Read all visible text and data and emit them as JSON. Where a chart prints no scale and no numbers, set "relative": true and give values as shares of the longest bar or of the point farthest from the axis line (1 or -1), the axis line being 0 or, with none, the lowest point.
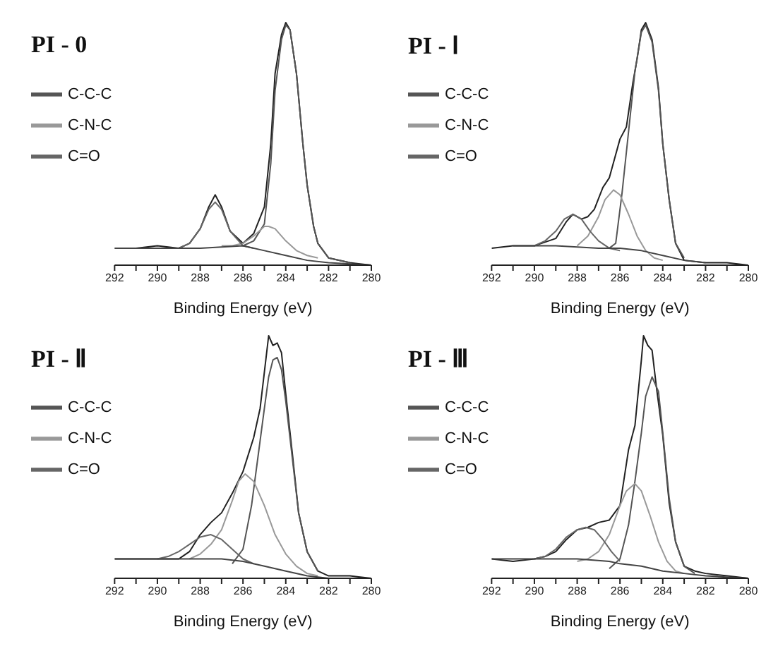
{
  "chart_data": [
    {
      "type": "line",
      "title": "PI - 0",
      "xlabel": "Binding Energy (eV)",
      "relative": true,
      "legend": "left",
      "marker": "none",
      "grid": false,
      "xlim": [
        292,
        280
      ],
      "xticks": [
        292,
        {
          "value": 291,
          "label": null
        },
        290,
        {
          "value": 289,
          "label": null
        },
        288,
        {
          "value": 287,
          "label": null
        },
        286,
        {
          "value": 285,
          "label": null
        },
        284,
        {
          "value": 283,
          "label": null
        },
        282,
        {
          "value": 281,
          "label": null
        },
        280
      ],
      "series": [
        {
          "color": "#222222",
          "x": [
            292,
            291,
            290,
            289,
            288.5,
            288,
            287.6,
            287.3,
            287,
            286.6,
            286,
            285.5,
            285,
            284.7,
            284.5,
            284.2,
            284,
            283.8,
            283.5,
            283.2,
            283,
            282.7,
            282.5,
            282,
            281,
            280
          ],
          "values": [
            0.07,
            0.07,
            0.08,
            0.07,
            0.09,
            0.15,
            0.24,
            0.29,
            0.24,
            0.14,
            0.09,
            0.13,
            0.24,
            0.5,
            0.79,
            0.95,
            1.0,
            0.97,
            0.79,
            0.5,
            0.33,
            0.16,
            0.09,
            0.03,
            0.01,
            0
          ]
        },
        {
          "name": "C-C-C",
          "color": "#555555",
          "x": [
            286,
            285.5,
            285,
            284.7,
            284.5,
            284.2,
            284,
            283.8,
            283.5,
            283.2,
            283,
            282.7,
            282.5,
            282,
            281
          ],
          "values": [
            0.08,
            0.1,
            0.17,
            0.42,
            0.72,
            0.93,
            0.99,
            0.97,
            0.79,
            0.5,
            0.33,
            0.16,
            0.09,
            0.03,
            0.01
          ]
        },
        {
          "name": "C-N-C",
          "color": "#999999",
          "x": [
            287,
            286.5,
            286,
            285.5,
            285,
            284.8,
            284.5,
            284,
            283.5,
            283,
            282.5
          ],
          "values": [
            0.08,
            0.08,
            0.09,
            0.12,
            0.16,
            0.16,
            0.15,
            0.1,
            0.06,
            0.04,
            0.03
          ]
        },
        {
          "name": "C=O",
          "color": "#666666",
          "x": [
            289,
            288.5,
            288,
            287.6,
            287.3,
            287,
            286.6,
            286,
            285.5
          ],
          "values": [
            0.07,
            0.09,
            0.15,
            0.23,
            0.26,
            0.23,
            0.14,
            0.08,
            0.07
          ]
        },
        {
          "color": "#444444",
          "x": [
            292,
            288,
            286,
            285,
            284,
            283,
            282,
            280
          ],
          "values": [
            0.07,
            0.07,
            0.08,
            0.06,
            0.04,
            0.02,
            0.01,
            0
          ]
        }
      ]
    },
    {
      "type": "line",
      "title": "PI - Ⅰ",
      "xlabel": "Binding Energy (eV)",
      "relative": true,
      "legend": "left",
      "marker": "none",
      "grid": false,
      "xlim": [
        292,
        280
      ],
      "xticks": [
        292,
        {
          "value": 291,
          "label": null
        },
        290,
        {
          "value": 289,
          "label": null
        },
        288,
        {
          "value": 287,
          "label": null
        },
        286,
        {
          "value": 285,
          "label": null
        },
        284,
        {
          "value": 283,
          "label": null
        },
        282,
        {
          "value": 281,
          "label": null
        },
        280
      ],
      "series": [
        {
          "color": "#222222",
          "x": [
            292,
            291,
            290,
            289,
            288.5,
            288.2,
            287.8,
            287.5,
            287.2,
            286.8,
            286.5,
            286,
            285.7,
            285.4,
            285.2,
            285,
            284.8,
            284.5,
            284.2,
            284,
            283.7,
            283.4,
            283,
            282,
            281,
            280
          ],
          "values": [
            0.07,
            0.08,
            0.08,
            0.11,
            0.18,
            0.21,
            0.19,
            0.2,
            0.23,
            0.32,
            0.36,
            0.52,
            0.57,
            0.75,
            0.85,
            0.97,
            1.0,
            0.93,
            0.73,
            0.5,
            0.27,
            0.09,
            0.02,
            0.01,
            0.01,
            0
          ]
        },
        {
          "name": "C-C-C",
          "color": "#555555",
          "x": [
            286.5,
            286.2,
            285.9,
            285.6,
            285.3,
            285,
            284.8,
            284.5,
            284.2,
            284,
            283.7,
            283.4,
            283
          ],
          "values": [
            0.07,
            0.09,
            0.3,
            0.55,
            0.8,
            0.96,
            0.99,
            0.92,
            0.72,
            0.5,
            0.27,
            0.09,
            0.03
          ]
        },
        {
          "name": "C-N-C",
          "color": "#999999",
          "x": [
            288,
            287.5,
            287,
            286.7,
            286.3,
            286,
            285.6,
            285.2,
            284.8,
            284.4,
            284
          ],
          "values": [
            0.08,
            0.12,
            0.2,
            0.27,
            0.31,
            0.29,
            0.21,
            0.12,
            0.06,
            0.03,
            0.02
          ]
        },
        {
          "name": "C=O",
          "color": "#666666",
          "x": [
            290,
            289.5,
            289,
            288.6,
            288.2,
            287.8,
            287.4,
            287,
            286.5,
            286
          ],
          "values": [
            0.08,
            0.1,
            0.14,
            0.19,
            0.21,
            0.19,
            0.14,
            0.1,
            0.07,
            0.06
          ]
        },
        {
          "color": "#444444",
          "x": [
            291,
            289,
            287,
            286,
            285,
            284,
            283,
            282
          ],
          "values": [
            0.08,
            0.08,
            0.07,
            0.07,
            0.06,
            0.04,
            0.02,
            0.01
          ]
        }
      ]
    },
    {
      "type": "line",
      "title": "PI - Ⅱ",
      "xlabel": "Binding Energy (eV)",
      "relative": true,
      "legend": "left",
      "marker": "none",
      "grid": false,
      "xlim": [
        292,
        280
      ],
      "xticks": [
        292,
        {
          "value": 291,
          "label": null
        },
        290,
        {
          "value": 289,
          "label": null
        },
        288,
        {
          "value": 287,
          "label": null
        },
        286,
        {
          "value": 285,
          "label": null
        },
        284,
        {
          "value": 283,
          "label": null
        },
        282,
        {
          "value": 281,
          "label": null
        },
        280
      ],
      "series": [
        {
          "color": "#222222",
          "x": [
            292,
            291,
            290,
            289,
            288.5,
            288,
            287.5,
            287,
            286.5,
            286,
            285.5,
            285.2,
            285,
            284.8,
            284.6,
            284.4,
            284.2,
            284,
            283.7,
            283.4,
            283,
            282.5,
            282,
            281,
            280
          ],
          "values": [
            0.08,
            0.08,
            0.08,
            0.08,
            0.11,
            0.18,
            0.23,
            0.27,
            0.35,
            0.44,
            0.58,
            0.7,
            0.85,
            1.0,
            0.96,
            0.97,
            0.93,
            0.76,
            0.52,
            0.27,
            0.11,
            0.03,
            0.01,
            0.01,
            0
          ]
        },
        {
          "name": "C-C-C",
          "color": "#555555",
          "x": [
            286.5,
            286,
            285.6,
            285.3,
            285,
            284.8,
            284.6,
            284.4,
            284.2,
            284,
            283.7,
            283.4,
            283,
            282.5
          ],
          "values": [
            0.06,
            0.12,
            0.3,
            0.5,
            0.7,
            0.83,
            0.9,
            0.91,
            0.86,
            0.73,
            0.5,
            0.27,
            0.11,
            0.03
          ]
        },
        {
          "name": "C-N-C",
          "color": "#999999",
          "x": [
            288.5,
            288,
            287.5,
            287,
            286.5,
            286.2,
            285.9,
            285.5,
            285,
            284.5,
            284,
            283.5,
            283,
            282.5
          ],
          "values": [
            0.08,
            0.1,
            0.14,
            0.2,
            0.32,
            0.4,
            0.43,
            0.4,
            0.3,
            0.18,
            0.1,
            0.05,
            0.02,
            0.01
          ]
        },
        {
          "name": "C=O",
          "color": "#666666",
          "x": [
            290,
            289.5,
            289,
            288.5,
            288,
            287.5,
            287,
            286.5,
            286,
            285.5
          ],
          "values": [
            0.08,
            0.09,
            0.11,
            0.14,
            0.17,
            0.18,
            0.16,
            0.12,
            0.08,
            0.06
          ]
        },
        {
          "color": "#444444",
          "x": [
            292,
            289,
            287,
            286,
            285,
            284,
            283,
            282
          ],
          "values": [
            0.08,
            0.08,
            0.08,
            0.07,
            0.05,
            0.03,
            0.01,
            0
          ]
        }
      ]
    },
    {
      "type": "line",
      "title": "PI - Ⅲ",
      "xlabel": "Binding Energy (eV)",
      "relative": true,
      "legend": "left",
      "marker": "none",
      "grid": false,
      "xlim": [
        292,
        280
      ],
      "xticks": [
        292,
        {
          "value": 291,
          "label": null
        },
        290,
        {
          "value": 289,
          "label": null
        },
        288,
        {
          "value": 287,
          "label": null
        },
        286,
        {
          "value": 285,
          "label": null
        },
        284,
        {
          "value": 283,
          "label": null
        },
        282,
        {
          "value": 281,
          "label": null
        },
        280
      ],
      "series": [
        {
          "color": "#222222",
          "x": [
            292,
            291,
            290,
            289.5,
            289,
            288.5,
            288,
            287.5,
            287,
            286.5,
            286,
            285.6,
            285.3,
            285,
            284.9,
            284.7,
            284.5,
            284.3,
            284,
            283.7,
            283.4,
            283,
            282.5,
            282,
            281,
            280
          ],
          "values": [
            0.08,
            0.07,
            0.08,
            0.09,
            0.11,
            0.16,
            0.2,
            0.21,
            0.23,
            0.24,
            0.3,
            0.53,
            0.63,
            0.9,
            1.0,
            0.96,
            0.94,
            0.79,
            0.59,
            0.31,
            0.15,
            0.05,
            0.03,
            0.02,
            0.01,
            0
          ]
        },
        {
          "name": "C-C-C",
          "color": "#555555",
          "x": [
            286.5,
            286,
            285.6,
            285.3,
            285,
            284.8,
            284.5,
            284.2,
            284,
            283.7,
            283.4,
            283,
            282.5
          ],
          "values": [
            0.04,
            0.08,
            0.22,
            0.4,
            0.6,
            0.75,
            0.83,
            0.77,
            0.6,
            0.33,
            0.15,
            0.05,
            0.02
          ]
        },
        {
          "name": "C-N-C",
          "color": "#999999",
          "x": [
            288,
            287.5,
            287,
            286.5,
            286,
            285.7,
            285.3,
            285,
            284.6,
            284.2,
            283.8,
            283.4,
            283
          ],
          "values": [
            0.07,
            0.08,
            0.11,
            0.18,
            0.3,
            0.36,
            0.39,
            0.36,
            0.26,
            0.15,
            0.07,
            0.03,
            0.02
          ]
        },
        {
          "name": "C=O",
          "color": "#666666",
          "x": [
            290,
            289.5,
            289,
            288.5,
            288,
            287.6,
            287.2,
            286.8,
            286.4,
            286
          ],
          "values": [
            0.08,
            0.09,
            0.12,
            0.17,
            0.2,
            0.21,
            0.2,
            0.16,
            0.11,
            0.07
          ]
        },
        {
          "color": "#444444",
          "x": [
            292,
            288,
            286.5,
            286,
            285,
            284,
            283,
            282,
            280
          ],
          "values": [
            0.08,
            0.08,
            0.07,
            0.06,
            0.05,
            0.03,
            0.02,
            0.01,
            0
          ]
        }
      ]
    }
  ]
}
